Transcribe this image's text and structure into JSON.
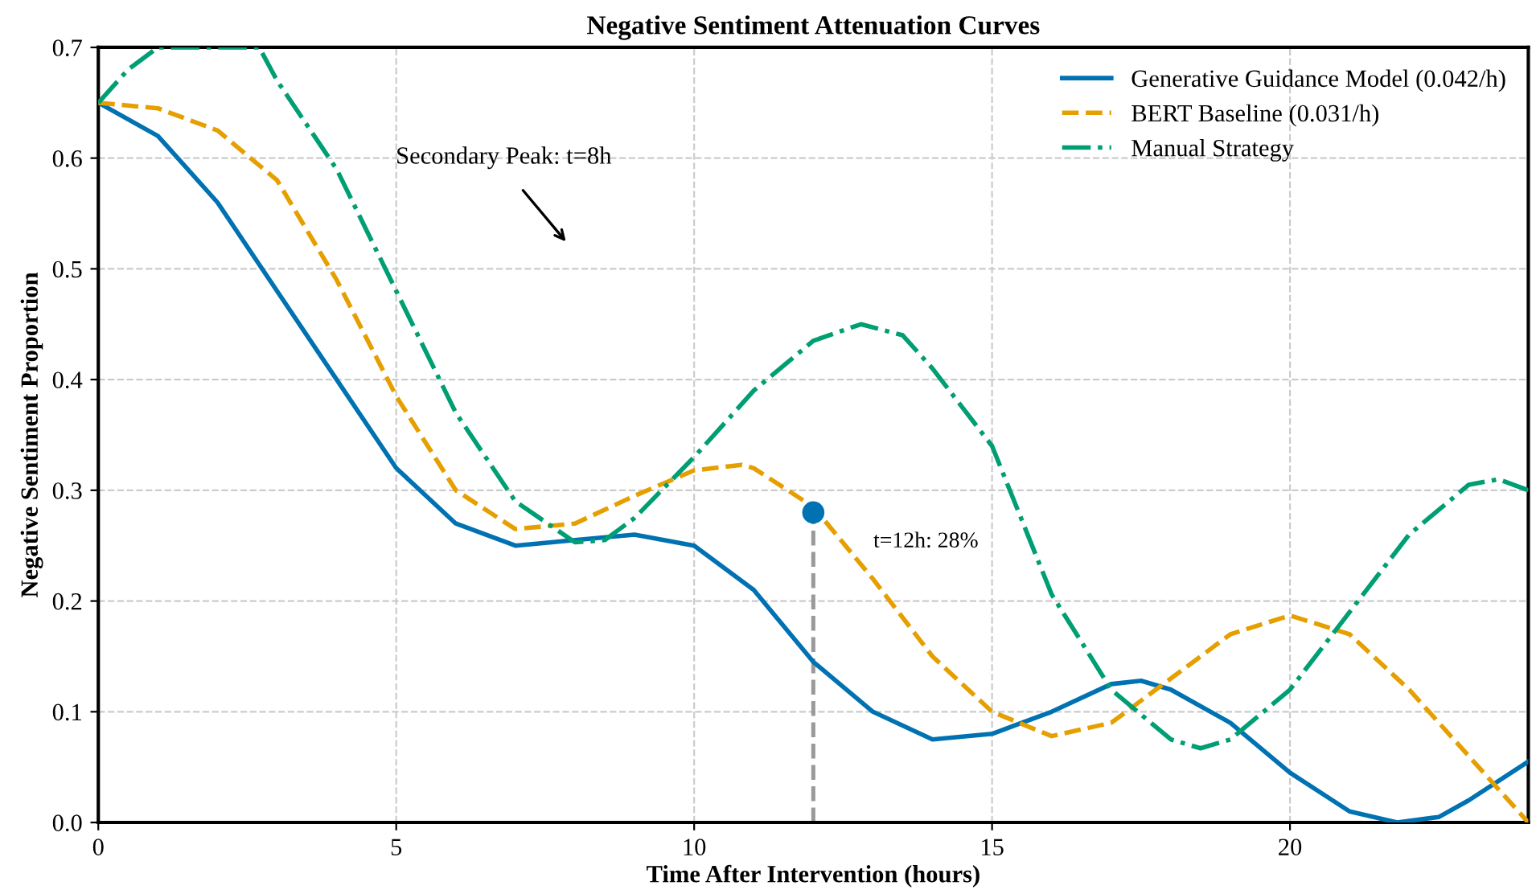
{
  "chart_data": {
    "type": "line",
    "title": "Negative Sentiment Attenuation Curves",
    "xlabel": "Time After Intervention (hours)",
    "ylabel": "Negative Sentiment Proportion",
    "xlim": [
      0,
      24
    ],
    "ylim": [
      0,
      0.7
    ],
    "xticks": [
      0,
      5,
      10,
      15,
      20
    ],
    "yticks": [
      {
        "value": 0,
        "label": "0.0"
      },
      0.1,
      0.2,
      0.3,
      0.4,
      0.5,
      0.6,
      0.7
    ],
    "grid": true,
    "legend": "top right",
    "series": [
      {
        "name": "Generative Guidance Model (0.042/h)",
        "color": "#0072b2",
        "line_style": "solid",
        "x": [
          0,
          1,
          2,
          3,
          4,
          5,
          6,
          7,
          8,
          9,
          10,
          11,
          12,
          13,
          14,
          15,
          16,
          17,
          17.5,
          18,
          19,
          20,
          21,
          21.8,
          22.5,
          23,
          24
        ],
        "values": [
          0.65,
          0.62,
          0.56,
          0.48,
          0.4,
          0.32,
          0.27,
          0.25,
          0.255,
          0.26,
          0.25,
          0.21,
          0.145,
          0.1,
          0.075,
          0.08,
          0.1,
          0.125,
          0.128,
          0.12,
          0.09,
          0.045,
          0.01,
          0.0,
          0.005,
          0.02,
          0.055
        ]
      },
      {
        "name": "BERT Baseline (0.031/h)",
        "color": "#e69f00",
        "line_style": "dashed",
        "x": [
          0,
          1,
          2,
          3,
          4,
          5,
          6,
          7,
          8,
          9,
          10,
          10.8,
          11,
          12,
          13,
          14,
          15,
          16,
          17,
          18,
          19,
          20,
          21,
          22,
          23,
          24
        ],
        "values": [
          0.65,
          0.645,
          0.625,
          0.58,
          0.49,
          0.385,
          0.3,
          0.265,
          0.27,
          0.295,
          0.318,
          0.323,
          0.32,
          0.285,
          0.22,
          0.15,
          0.1,
          0.078,
          0.09,
          0.13,
          0.17,
          0.187,
          0.17,
          0.12,
          0.06,
          0.0
        ]
      },
      {
        "name": "Manual Strategy",
        "color": "#009e73",
        "line_style": "dashdot",
        "x": [
          0,
          0.5,
          1,
          2.7,
          3,
          4,
          5,
          6,
          7,
          8,
          8.5,
          9,
          10,
          11,
          12,
          12.8,
          13.5,
          14,
          15,
          16,
          17,
          18,
          18.5,
          19,
          20,
          21,
          22,
          23,
          23.5,
          24
        ],
        "values": [
          0.65,
          0.68,
          0.7,
          0.7,
          0.67,
          0.59,
          0.48,
          0.37,
          0.29,
          0.253,
          0.255,
          0.275,
          0.33,
          0.39,
          0.435,
          0.45,
          0.44,
          0.41,
          0.34,
          0.206,
          0.12,
          0.075,
          0.067,
          0.075,
          0.12,
          0.19,
          0.26,
          0.305,
          0.31,
          0.3
        ]
      },
      {
        "type": "line",
        "color": "#999999",
        "line_style": "dashed",
        "x": [
          12,
          12
        ],
        "values": [
          0,
          0.28
        ]
      },
      {
        "type": "scatter",
        "color": "#0072b2",
        "marker": "circle",
        "x": [
          12
        ],
        "values": [
          0.28
        ]
      }
    ],
    "annotations": [
      "Secondary Peak: t=8h",
      "t=12h: 28%"
    ]
  }
}
